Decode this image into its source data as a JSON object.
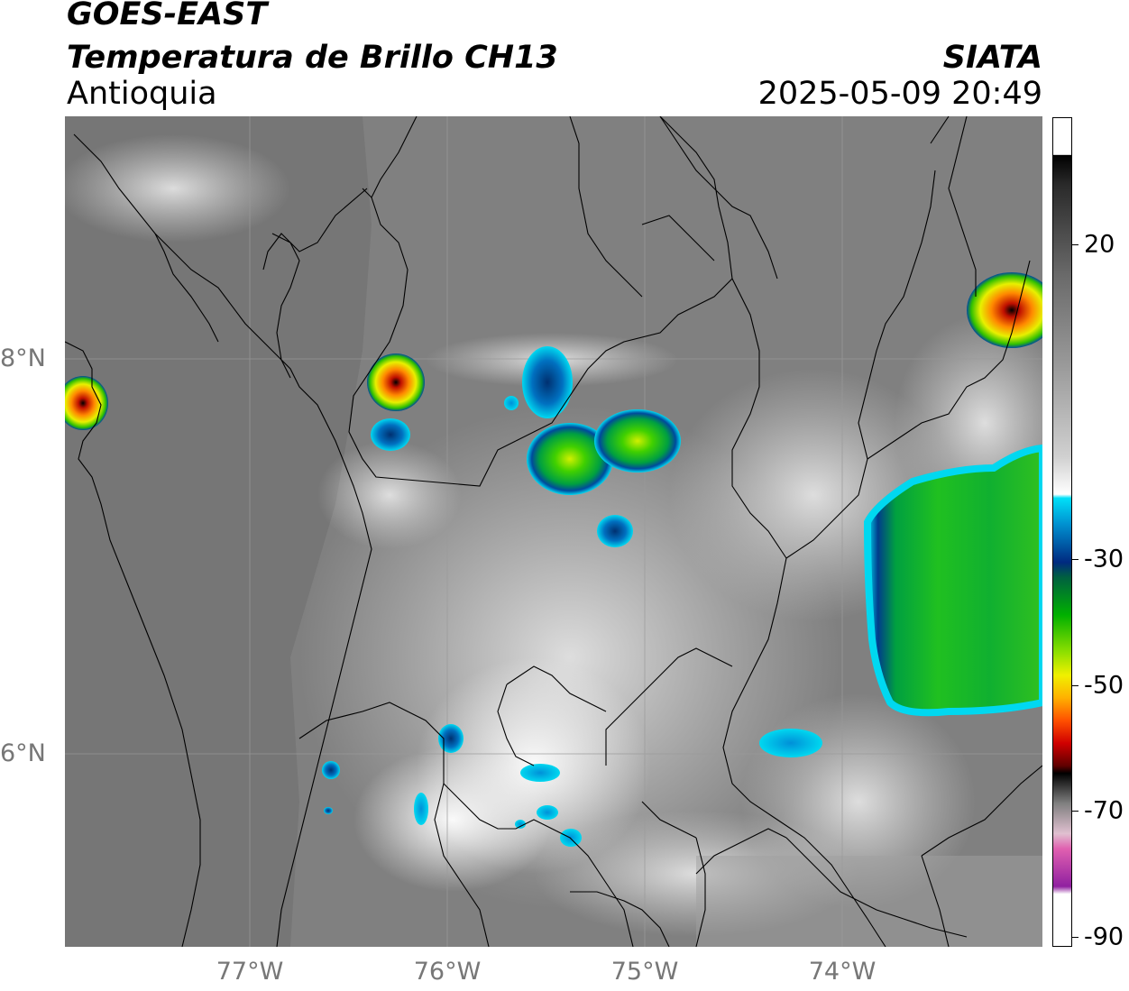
{
  "header": {
    "satellite": "GOES-EAST",
    "product": "Temperatura de Brillo CH13",
    "region": "Antioquia",
    "organization": "SIATA",
    "datetime": "2025-05-09 20:49"
  },
  "axes": {
    "lat_ticks": [
      "8°N",
      "6°N"
    ],
    "lon_ticks": [
      "77°W",
      "76°W",
      "75°W",
      "74°W"
    ]
  },
  "colorbar": {
    "ticks": [
      "20",
      "-30",
      "-50",
      "-70",
      "-90"
    ],
    "colors": {
      "warm_gray": "#8a8a8a",
      "white": "#ffffff",
      "cyan": "#00d8f0",
      "blue": "#003c8c",
      "green": "#00c000",
      "yellow": "#e8f000",
      "orange": "#ff9000",
      "red": "#e01000",
      "black": "#000000",
      "magenta": "#b030b0"
    }
  }
}
